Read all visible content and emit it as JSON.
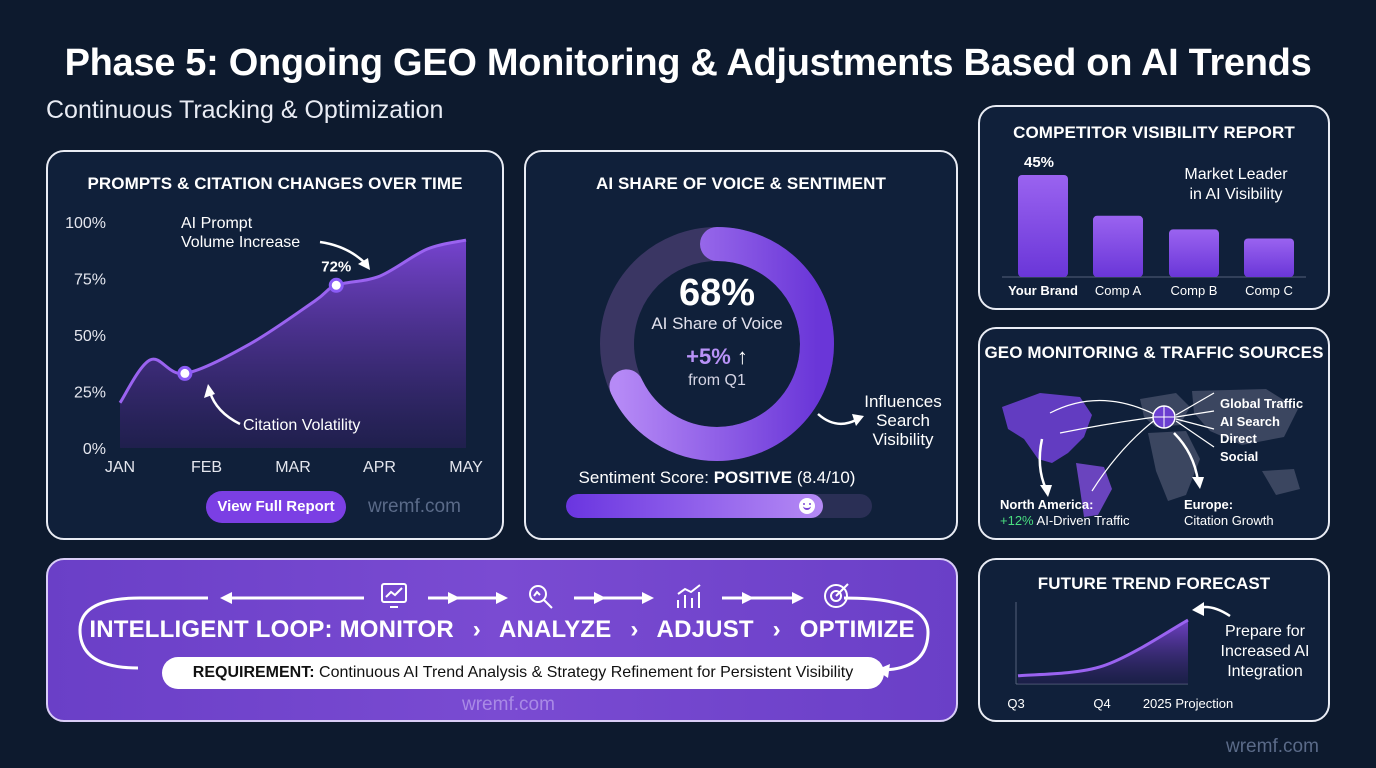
{
  "title": "Phase 5: Ongoing GEO Monitoring & Adjustments Based on AI Trends",
  "subtitle": "Continuous Tracking & Optimization",
  "watermark": "wremf.com",
  "colors": {
    "background": "#0d1a2e",
    "panel": "#10203a",
    "accent": "#8b5cf6",
    "accent_light": "#b892f7",
    "positive": "#4ade80"
  },
  "chart_data": [
    {
      "type": "area",
      "title": "PROMPTS & CITATION CHANGES OVER TIME",
      "categories": [
        "JAN",
        "FEB",
        "MAR",
        "APR",
        "MAY"
      ],
      "series": [
        {
          "x": [
            0,
            0.35,
            0.75,
            1.5,
            2.25,
            2.5,
            3.0,
            3.55,
            4.0
          ],
          "values": [
            20,
            39,
            33,
            46,
            65,
            72,
            76,
            88,
            92
          ]
        }
      ],
      "ylim": [
        0,
        100
      ],
      "yticks": [
        "0%",
        "25%",
        "50%",
        "75%",
        "100%"
      ],
      "markers": [
        {
          "x": 0.75,
          "y": 33,
          "label": "Citation Volatility"
        },
        {
          "x": 2.5,
          "y": 72,
          "label": "72%"
        }
      ],
      "annotation_prompt": [
        "AI Prompt",
        "Volume Increase"
      ],
      "button_label": "View Full Report"
    },
    {
      "type": "pie",
      "title": "AI SHARE OF VOICE & SENTIMENT",
      "value": 68,
      "value_label": "68%",
      "label": "AI Share of Voice",
      "change": "+5%",
      "change_arrow": "↑",
      "change_note": "from Q1",
      "side_note": [
        "Influences",
        "Search",
        "Visibility"
      ],
      "sentiment_prefix": "Sentiment Score:",
      "sentiment_value": "POSITIVE",
      "sentiment_score": "(8.4/10)",
      "sentiment_fraction": 0.84,
      "sentiment_icon": "smile-icon"
    },
    {
      "type": "bar",
      "title": "COMPETITOR VISIBILITY REPORT",
      "categories": [
        "Your Brand",
        "Comp A",
        "Comp B",
        "Comp C"
      ],
      "values": [
        45,
        27,
        21,
        17
      ],
      "data_labels": [
        "45%",
        "",
        "",
        ""
      ],
      "annotation": [
        "Market Leader",
        "in AI Visibility"
      ]
    },
    {
      "type": "line",
      "title": "FUTURE TREND FORECAST",
      "categories": [
        "Q3",
        "Q4",
        "2025 Projection"
      ],
      "x": [
        0,
        1,
        2
      ],
      "values": [
        10,
        22,
        78
      ],
      "annotation": [
        "Prepare for",
        "Increased AI",
        "Integration"
      ]
    }
  ],
  "geo": {
    "title": "GEO MONITORING & TRAFFIC SOURCES",
    "sources": [
      "Global Traffic",
      "AI Search",
      "Direct",
      "Social"
    ],
    "north_america_title": "North America:",
    "north_america_change": "+12%",
    "north_america_text": "AI-Driven Traffic",
    "europe_title": "Europe:",
    "europe_text": "Citation Growth"
  },
  "loop": {
    "steps": [
      "INTELLIGENT LOOP: MONITOR",
      "ANALYZE",
      "ADJUST",
      "OPTIMIZE"
    ],
    "separator": "›",
    "icons": [
      "monitor-icon",
      "analyze-icon",
      "adjust-icon",
      "optimize-icon"
    ],
    "requirement_label": "REQUIREMENT:",
    "requirement_text": "Continuous AI Trend Analysis & Strategy Refinement for Persistent Visibility"
  }
}
